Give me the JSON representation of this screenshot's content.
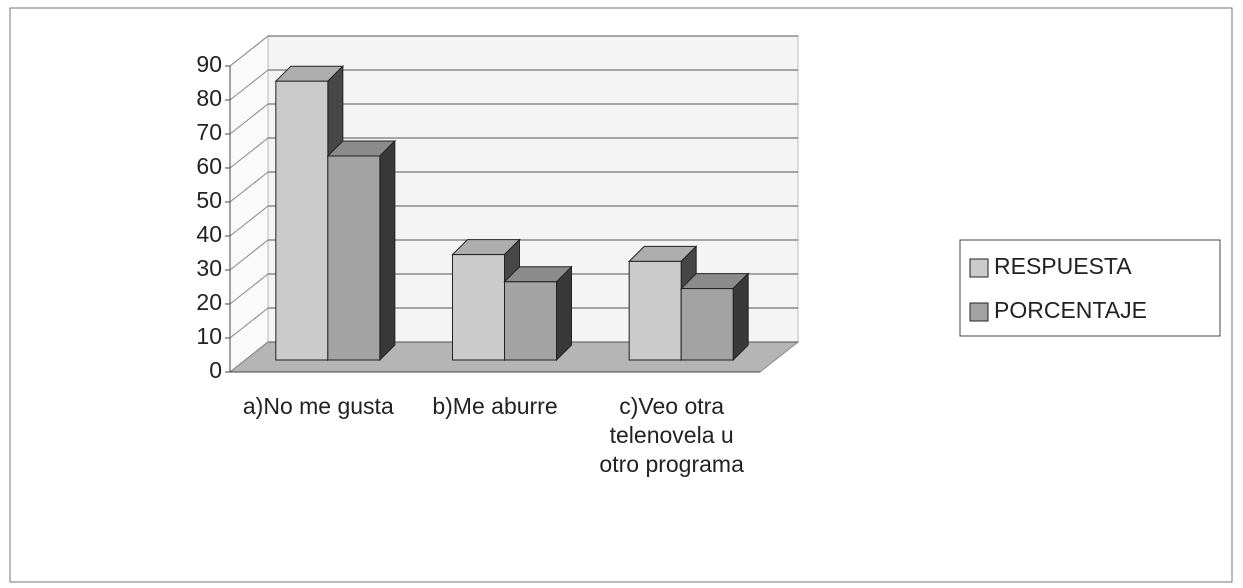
{
  "chart_data": {
    "type": "bar3d",
    "categories": [
      "a)No me gusta",
      "b)Me aburre",
      "c)Veo otra telenovela u otro programa"
    ],
    "series": [
      {
        "name": "RESPUESTA",
        "color": "#cbcbcb",
        "values": [
          82,
          31,
          29
        ]
      },
      {
        "name": "PORCENTAJE",
        "color": "#a3a3a3",
        "values": [
          60,
          23,
          21
        ]
      }
    ],
    "ylim": [
      0,
      90
    ],
    "yticks": [
      0,
      10,
      20,
      30,
      40,
      50,
      60,
      70,
      80,
      90
    ],
    "grid": true,
    "legend": "right"
  }
}
